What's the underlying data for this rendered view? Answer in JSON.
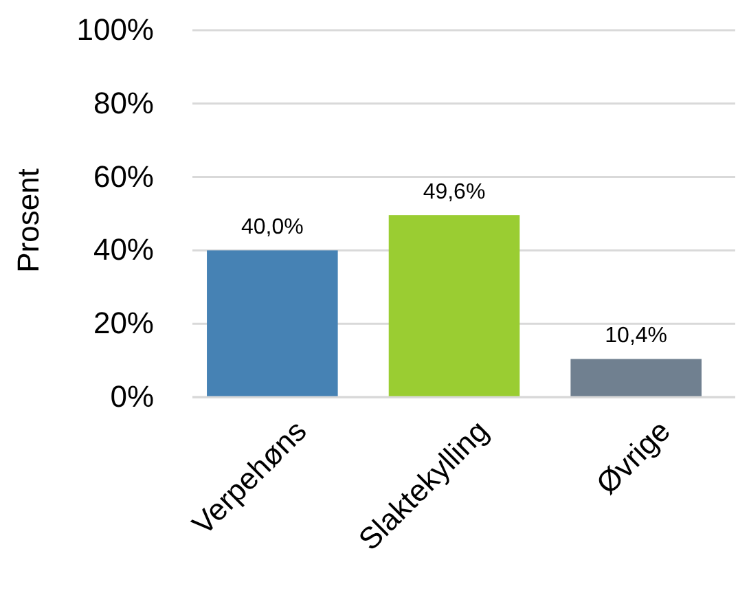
{
  "chart_data": {
    "type": "bar",
    "ylabel": "Prosent",
    "categories": [
      "Verpehøns",
      "Slaktekylling",
      "Øvrige"
    ],
    "values": [
      40.0,
      49.6,
      10.4
    ],
    "colors": [
      "#4682b4",
      "#9acd32",
      "#708090"
    ],
    "value_labels": [
      "40,0%",
      "49,6%",
      "10,4%"
    ],
    "ylim": [
      0,
      100
    ],
    "yticks": [
      {
        "value": 0,
        "label": "0%"
      },
      {
        "value": 20,
        "label": "20%"
      },
      {
        "value": 40,
        "label": "40%"
      },
      {
        "value": 60,
        "label": "60%"
      },
      {
        "value": 80,
        "label": "80%"
      },
      {
        "value": 100,
        "label": "100%"
      }
    ],
    "grid": "y"
  }
}
